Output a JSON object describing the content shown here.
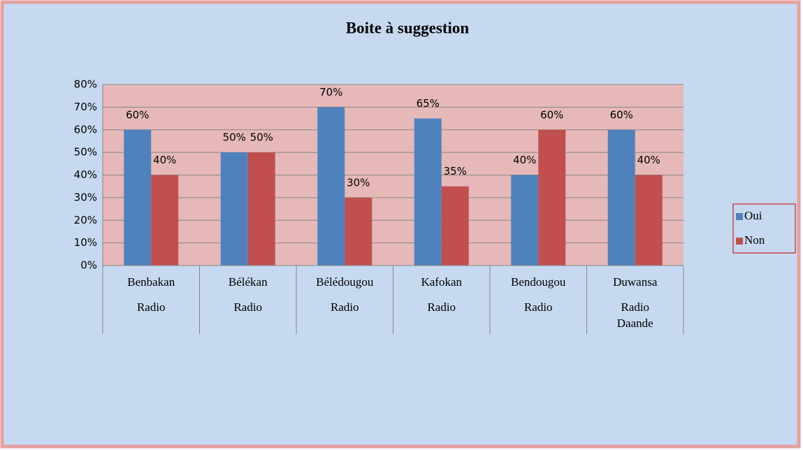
{
  "chart_data": {
    "type": "bar",
    "title": "Boite à suggestion",
    "categories": [
      [
        "Benbakan",
        "Radio"
      ],
      [
        "Bélékan",
        "Radio"
      ],
      [
        "Bélédougou",
        "Radio"
      ],
      [
        "Kafokan",
        "Radio"
      ],
      [
        "Bendougou",
        "Radio"
      ],
      [
        "Duwansa",
        "Radio",
        "Daande"
      ]
    ],
    "series": [
      {
        "name": "Oui",
        "color": "#4f81bd",
        "values": [
          60,
          50,
          70,
          65,
          40,
          60
        ],
        "value_labels": [
          "60%",
          "50%",
          "70%",
          "65%",
          "40%",
          "60%"
        ]
      },
      {
        "name": "Non",
        "color": "#c0504d",
        "values": [
          40,
          50,
          30,
          35,
          60,
          40
        ],
        "value_labels": [
          "40%",
          "50%",
          "30%",
          "35%",
          "60%",
          "40%"
        ]
      }
    ],
    "ylim": [
      0,
      80
    ],
    "yticks": [
      {
        "value": 0,
        "label": "0%"
      },
      {
        "value": 10,
        "label": "10%"
      },
      {
        "value": 20,
        "label": "20%"
      },
      {
        "value": 30,
        "label": "30%"
      },
      {
        "value": 40,
        "label": "40%"
      },
      {
        "value": 50,
        "label": "50%"
      },
      {
        "value": 60,
        "label": "60%"
      },
      {
        "value": 70,
        "label": "70%"
      },
      {
        "value": 80,
        "label": "80%"
      }
    ],
    "grid": true,
    "legend": "right"
  }
}
